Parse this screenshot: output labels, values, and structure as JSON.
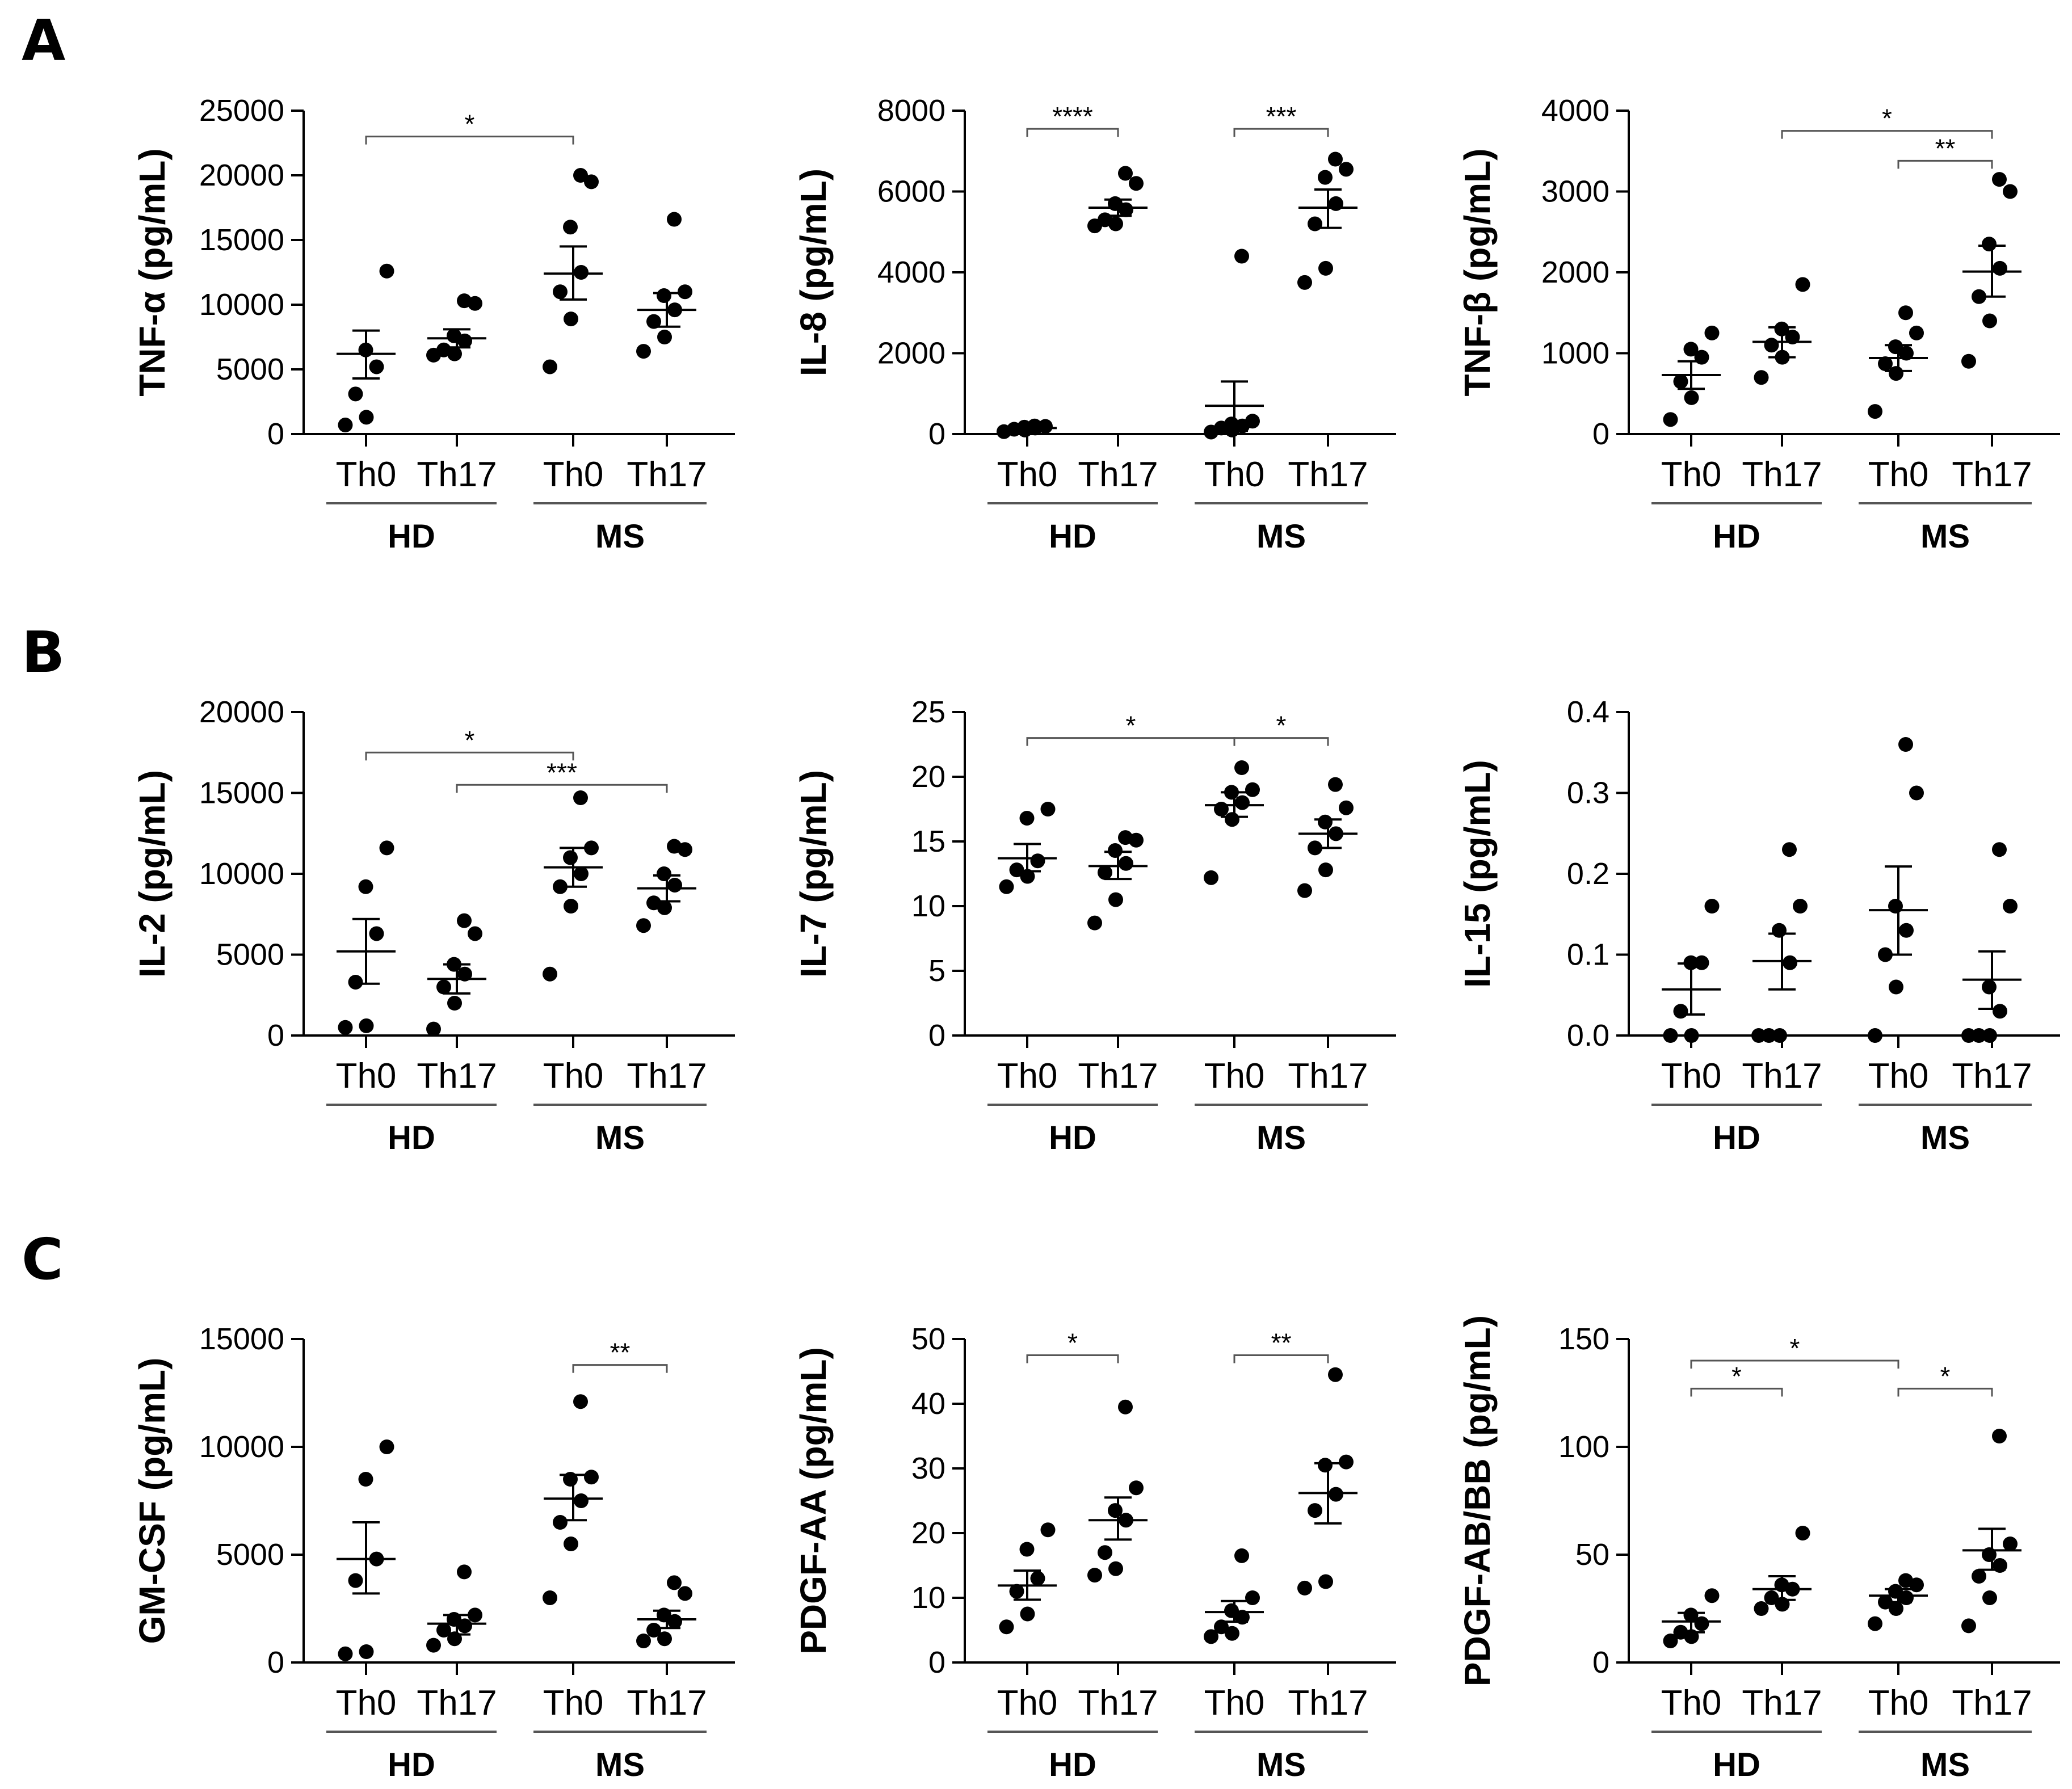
{
  "panels": [
    {
      "id": "A",
      "label": "A"
    },
    {
      "id": "B",
      "label": "B"
    },
    {
      "id": "C",
      "label": "C"
    }
  ],
  "chart_data": [
    {
      "type": "scatter",
      "panel": "A",
      "ylabel": "TNF-α (pg/mL)",
      "ylim": [
        0,
        25000
      ],
      "yticks": [
        0,
        5000,
        10000,
        15000,
        20000,
        25000
      ],
      "categories": [
        "Th0",
        "Th17",
        "Th0",
        "Th17"
      ],
      "groups": [
        {
          "label": "HD",
          "members": [
            0,
            1
          ]
        },
        {
          "label": "MS",
          "members": [
            2,
            3
          ]
        }
      ],
      "series": [
        {
          "name": "HD Th0",
          "points": [
            700,
            1300,
            3100,
            5200,
            6500,
            12600
          ],
          "mean": 6200,
          "sem_low": 4300,
          "sem_high": 8000
        },
        {
          "name": "HD Th17",
          "points": [
            6100,
            6200,
            6500,
            7200,
            7600,
            10100,
            10300
          ],
          "mean": 7400,
          "sem_low": 6700,
          "sem_high": 8100
        },
        {
          "name": "MS Th0",
          "points": [
            5200,
            8900,
            11000,
            12500,
            16000,
            19500,
            20000
          ],
          "mean": 12400,
          "sem_low": 10400,
          "sem_high": 14500
        },
        {
          "name": "MS Th17",
          "points": [
            6400,
            7500,
            8700,
            9600,
            10700,
            11000,
            16600
          ],
          "mean": 9600,
          "sem_low": 8300,
          "sem_high": 10900
        }
      ],
      "significance": [
        {
          "from": 0,
          "to": 2,
          "label": "*",
          "value": 23000
        }
      ]
    },
    {
      "type": "scatter",
      "panel": "A",
      "ylabel": "IL-8 (pg/mL)",
      "ylim": [
        0,
        8000
      ],
      "yticks": [
        0,
        2000,
        4000,
        6000,
        8000
      ],
      "categories": [
        "Th0",
        "Th17",
        "Th0",
        "Th17"
      ],
      "groups": [
        {
          "label": "HD",
          "members": [
            0,
            1
          ]
        },
        {
          "label": "MS",
          "members": [
            2,
            3
          ]
        }
      ],
      "series": [
        {
          "name": "HD Th0",
          "points": [
            60,
            100,
            120,
            150,
            170,
            190,
            200
          ],
          "mean": 150,
          "sem_low": 110,
          "sem_high": 190
        },
        {
          "name": "HD Th17",
          "points": [
            5150,
            5200,
            5300,
            5550,
            5700,
            6200,
            6450
          ],
          "mean": 5600,
          "sem_low": 5400,
          "sem_high": 5800
        },
        {
          "name": "MS Th0",
          "points": [
            50,
            100,
            150,
            200,
            250,
            320,
            4400
          ],
          "mean": 700,
          "sem_low": 80,
          "sem_high": 1300
        },
        {
          "name": "MS Th17",
          "points": [
            3750,
            4100,
            5200,
            5700,
            6350,
            6550,
            6800
          ],
          "mean": 5600,
          "sem_low": 5100,
          "sem_high": 6050
        }
      ],
      "significance": [
        {
          "from": 0,
          "to": 1,
          "label": "****",
          "value": 7550
        },
        {
          "from": 2,
          "to": 3,
          "label": "***",
          "value": 7550
        }
      ]
    },
    {
      "type": "scatter",
      "panel": "A",
      "ylabel": "TNF-β (pg/mL)",
      "ylim": [
        0,
        4000
      ],
      "yticks": [
        0,
        1000,
        2000,
        3000,
        4000
      ],
      "categories": [
        "Th0",
        "Th17",
        "Th0",
        "Th17"
      ],
      "groups": [
        {
          "label": "HD",
          "members": [
            0,
            1
          ]
        },
        {
          "label": "MS",
          "members": [
            2,
            3
          ]
        }
      ],
      "series": [
        {
          "name": "HD Th0",
          "points": [
            180,
            450,
            650,
            950,
            1050,
            1250
          ],
          "mean": 730,
          "sem_low": 560,
          "sem_high": 900
        },
        {
          "name": "HD Th17",
          "points": [
            700,
            950,
            1100,
            1200,
            1300,
            1850
          ],
          "mean": 1140,
          "sem_low": 950,
          "sem_high": 1320
        },
        {
          "name": "MS Th0",
          "points": [
            280,
            750,
            870,
            1000,
            1080,
            1250,
            1500
          ],
          "mean": 940,
          "sem_low": 780,
          "sem_high": 1100
        },
        {
          "name": "MS Th17",
          "points": [
            900,
            1400,
            1700,
            2050,
            2350,
            3000,
            3150
          ],
          "mean": 2010,
          "sem_low": 1700,
          "sem_high": 2330
        }
      ],
      "significance": [
        {
          "from": 1,
          "to": 3,
          "label": "*",
          "value": 3750
        },
        {
          "from": 2,
          "to": 3,
          "label": "**",
          "value": 3380
        }
      ]
    },
    {
      "type": "scatter",
      "panel": "B",
      "ylabel": "IL-2 (pg/mL)",
      "ylim": [
        0,
        20000
      ],
      "yticks": [
        0,
        5000,
        10000,
        15000,
        20000
      ],
      "categories": [
        "Th0",
        "Th17",
        "Th0",
        "Th17"
      ],
      "groups": [
        {
          "label": "HD",
          "members": [
            0,
            1
          ]
        },
        {
          "label": "MS",
          "members": [
            2,
            3
          ]
        }
      ],
      "series": [
        {
          "name": "HD Th0",
          "points": [
            500,
            600,
            3300,
            6300,
            9200,
            11600
          ],
          "mean": 5200,
          "sem_low": 3200,
          "sem_high": 7200
        },
        {
          "name": "HD Th17",
          "points": [
            400,
            2000,
            3000,
            3800,
            4400,
            6300,
            7100
          ],
          "mean": 3500,
          "sem_low": 2600,
          "sem_high": 4400
        },
        {
          "name": "MS Th0",
          "points": [
            3800,
            8000,
            9200,
            10000,
            11000,
            11600,
            14700
          ],
          "mean": 10400,
          "sem_low": 9200,
          "sem_high": 11600
        },
        {
          "name": "MS Th17",
          "points": [
            6800,
            7900,
            8200,
            9300,
            10000,
            11500,
            11700
          ],
          "mean": 9100,
          "sem_low": 8300,
          "sem_high": 9900
        }
      ],
      "significance": [
        {
          "from": 0,
          "to": 2,
          "label": "*",
          "value": 17500
        },
        {
          "from": 1,
          "to": 3,
          "label": "***",
          "value": 15500
        }
      ]
    },
    {
      "type": "scatter",
      "panel": "B",
      "ylabel": "IL-7 (pg/mL)",
      "ylim": [
        0,
        25
      ],
      "yticks": [
        0,
        5,
        10,
        15,
        20,
        25
      ],
      "categories": [
        "Th0",
        "Th17",
        "Th0",
        "Th17"
      ],
      "groups": [
        {
          "label": "HD",
          "members": [
            0,
            1
          ]
        },
        {
          "label": "MS",
          "members": [
            2,
            3
          ]
        }
      ],
      "series": [
        {
          "name": "HD Th0",
          "points": [
            11.5,
            12.3,
            12.8,
            13.5,
            16.8,
            17.5
          ],
          "mean": 13.7,
          "sem_low": 12.7,
          "sem_high": 14.8
        },
        {
          "name": "HD Th17",
          "points": [
            8.7,
            10.5,
            12.6,
            13.3,
            14.3,
            15.1,
            15.3
          ],
          "mean": 13.1,
          "sem_low": 12.1,
          "sem_high": 14.2
        },
        {
          "name": "MS Th0",
          "points": [
            12.2,
            16.7,
            17.5,
            18.0,
            18.8,
            19.0,
            20.7
          ],
          "mean": 17.8,
          "sem_low": 16.9,
          "sem_high": 18.8
        },
        {
          "name": "MS Th17",
          "points": [
            11.2,
            12.8,
            14.5,
            15.6,
            16.5,
            17.6,
            19.4
          ],
          "mean": 15.6,
          "sem_low": 14.5,
          "sem_high": 16.7
        }
      ],
      "significance": [
        {
          "from": 0,
          "to": 2,
          "label": "*",
          "value": 23.0
        },
        {
          "from": 2,
          "to": 3,
          "label": "*",
          "value": 23.0
        }
      ]
    },
    {
      "type": "scatter",
      "panel": "B",
      "ylabel": "IL-15 (pg/mL)",
      "ylim": [
        0,
        0.4
      ],
      "yticks": [
        0.0,
        0.1,
        0.2,
        0.3,
        0.4
      ],
      "ytick_decimals": 1,
      "categories": [
        "Th0",
        "Th17",
        "Th0",
        "Th17"
      ],
      "groups": [
        {
          "label": "HD",
          "members": [
            0,
            1
          ]
        },
        {
          "label": "MS",
          "members": [
            2,
            3
          ]
        }
      ],
      "series": [
        {
          "name": "HD Th0",
          "points": [
            0,
            0,
            0.03,
            0.09,
            0.09,
            0.16
          ],
          "mean": 0.057,
          "sem_low": 0.026,
          "sem_high": 0.089
        },
        {
          "name": "HD Th17",
          "points": [
            0,
            0,
            0,
            0.09,
            0.13,
            0.16,
            0.23
          ],
          "mean": 0.092,
          "sem_low": 0.057,
          "sem_high": 0.126
        },
        {
          "name": "MS Th0",
          "points": [
            0,
            0.06,
            0.1,
            0.13,
            0.16,
            0.3,
            0.36
          ],
          "mean": 0.155,
          "sem_low": 0.1,
          "sem_high": 0.209
        },
        {
          "name": "MS Th17",
          "points": [
            0,
            0,
            0,
            0.03,
            0.06,
            0.16,
            0.23
          ],
          "mean": 0.069,
          "sem_low": 0.033,
          "sem_high": 0.104
        }
      ],
      "significance": []
    },
    {
      "type": "scatter",
      "panel": "C",
      "ylabel": "GM-CSF (pg/mL)",
      "ylim": [
        0,
        15000
      ],
      "yticks": [
        0,
        5000,
        10000,
        15000
      ],
      "categories": [
        "Th0",
        "Th17",
        "Th0",
        "Th17"
      ],
      "groups": [
        {
          "label": "HD",
          "members": [
            0,
            1
          ]
        },
        {
          "label": "MS",
          "members": [
            2,
            3
          ]
        }
      ],
      "series": [
        {
          "name": "HD Th0",
          "points": [
            400,
            500,
            3800,
            4800,
            8500,
            10000
          ],
          "mean": 4800,
          "sem_low": 3200,
          "sem_high": 6500
        },
        {
          "name": "HD Th17",
          "points": [
            800,
            1100,
            1500,
            1700,
            2000,
            2200,
            4200
          ],
          "mean": 1800,
          "sem_low": 1300,
          "sem_high": 2200
        },
        {
          "name": "MS Th0",
          "points": [
            3000,
            5500,
            6500,
            7500,
            8500,
            8600,
            12100
          ],
          "mean": 7600,
          "sem_low": 6600,
          "sem_high": 8700
        },
        {
          "name": "MS Th17",
          "points": [
            1000,
            1100,
            1500,
            1900,
            2200,
            3200,
            3700
          ],
          "mean": 2000,
          "sem_low": 1600,
          "sem_high": 2400
        }
      ],
      "significance": [
        {
          "from": 2,
          "to": 3,
          "label": "**",
          "value": 13800
        }
      ]
    },
    {
      "type": "scatter",
      "panel": "C",
      "ylabel": "PDGF-AA (pg/mL)",
      "ylim": [
        0,
        50
      ],
      "yticks": [
        0,
        10,
        20,
        30,
        40,
        50
      ],
      "categories": [
        "Th0",
        "Th17",
        "Th0",
        "Th17"
      ],
      "groups": [
        {
          "label": "HD",
          "members": [
            0,
            1
          ]
        },
        {
          "label": "MS",
          "members": [
            2,
            3
          ]
        }
      ],
      "series": [
        {
          "name": "HD Th0",
          "points": [
            5.5,
            7.5,
            11.0,
            13.0,
            17.5,
            20.5
          ],
          "mean": 11.9,
          "sem_low": 9.7,
          "sem_high": 14.2
        },
        {
          "name": "HD Th17",
          "points": [
            13.5,
            14.5,
            17.0,
            22.0,
            23.5,
            27.0,
            39.5
          ],
          "mean": 22.0,
          "sem_low": 19.0,
          "sem_high": 25.5
        },
        {
          "name": "MS Th0",
          "points": [
            4.0,
            4.5,
            5.5,
            7.0,
            8.0,
            10.0,
            16.5
          ],
          "mean": 7.8,
          "sem_low": 6.3,
          "sem_high": 9.5
        },
        {
          "name": "MS Th17",
          "points": [
            11.5,
            12.5,
            23.5,
            26.0,
            30.5,
            31.0,
            44.5
          ],
          "mean": 26.2,
          "sem_low": 21.5,
          "sem_high": 30.8
        }
      ],
      "significance": [
        {
          "from": 0,
          "to": 1,
          "label": "*",
          "value": 47.5
        },
        {
          "from": 2,
          "to": 3,
          "label": "**",
          "value": 47.5
        }
      ]
    },
    {
      "type": "scatter",
      "panel": "C",
      "ylabel": "PDGF-AB/BB (pg/mL)",
      "ylim": [
        0,
        150
      ],
      "yticks": [
        0,
        50,
        100,
        150
      ],
      "categories": [
        "Th0",
        "Th17",
        "Th0",
        "Th17"
      ],
      "groups": [
        {
          "label": "HD",
          "members": [
            0,
            1
          ]
        },
        {
          "label": "MS",
          "members": [
            2,
            3
          ]
        }
      ],
      "series": [
        {
          "name": "HD Th0",
          "points": [
            10,
            12,
            14,
            18,
            22,
            31
          ],
          "mean": 19,
          "sem_low": 14,
          "sem_high": 23
        },
        {
          "name": "HD Th17",
          "points": [
            25,
            27,
            30,
            34,
            36,
            60
          ],
          "mean": 34,
          "sem_low": 29,
          "sem_high": 40
        },
        {
          "name": "MS Th0",
          "points": [
            18,
            25,
            28,
            30,
            33,
            36,
            38
          ],
          "mean": 31,
          "sem_low": 28,
          "sem_high": 34
        },
        {
          "name": "MS Th17",
          "points": [
            17,
            30,
            40,
            45,
            50,
            55,
            105
          ],
          "mean": 52,
          "sem_low": 43,
          "sem_high": 62
        }
      ],
      "significance": [
        {
          "from": 0,
          "to": 2,
          "label": "*",
          "value": 140
        },
        {
          "from": 0,
          "to": 1,
          "label": "*",
          "value": 127
        },
        {
          "from": 2,
          "to": 3,
          "label": "*",
          "value": 127
        }
      ]
    }
  ]
}
